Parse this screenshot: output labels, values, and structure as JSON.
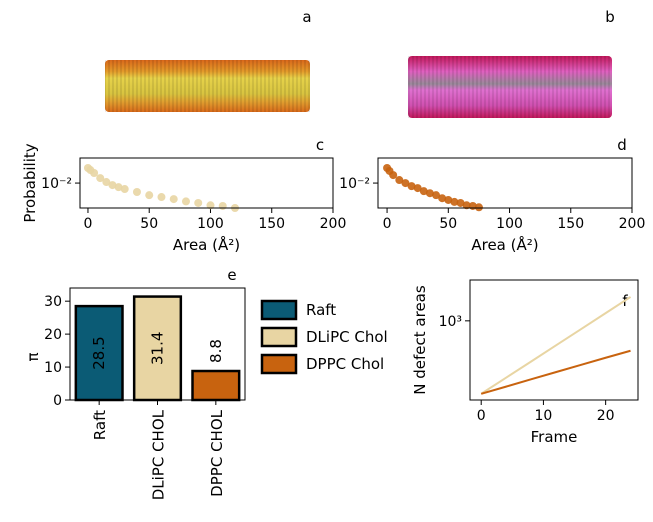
{
  "images": [
    {
      "label": "a"
    },
    {
      "label": "b"
    }
  ],
  "chart_data": [
    {
      "type": "scatter",
      "panel_label": "c",
      "xlabel": "Area (Å²)",
      "ylabel": "Probability",
      "color": "#e8d5a3",
      "log_y": true,
      "x": [
        0,
        2,
        5,
        10,
        15,
        20,
        25,
        30,
        40,
        50,
        60,
        70,
        80,
        90,
        100,
        110,
        120
      ],
      "values": [
        0.0237,
        0.0211,
        0.0178,
        0.0133,
        0.0106,
        0.0089,
        0.0079,
        0.0071,
        0.006,
        0.005,
        0.0045,
        0.004,
        0.0035,
        0.0032,
        0.0028,
        0.0027,
        0.0024
      ],
      "xlim": [
        -6.5,
        200
      ],
      "xticks": [
        0,
        50,
        100,
        150,
        200
      ],
      "ylim": [
        0.0024,
        0.042
      ],
      "yticks": [
        {
          "value": 0.01,
          "label": "10⁻²"
        }
      ]
    },
    {
      "type": "scatter",
      "panel_label": "d",
      "xlabel": "Area (Å²)",
      "color": "#c8630f",
      "log_y": true,
      "x": [
        0,
        2,
        5,
        10,
        15,
        20,
        25,
        30,
        35,
        40,
        45,
        50,
        55,
        60,
        65,
        70,
        75
      ],
      "values": [
        0.0237,
        0.02,
        0.0158,
        0.0119,
        0.01,
        0.0084,
        0.0075,
        0.0063,
        0.0056,
        0.005,
        0.0042,
        0.0038,
        0.0034,
        0.0032,
        0.0028,
        0.0027,
        0.0025
      ],
      "xlim": [
        -7.4,
        200
      ],
      "xticks": [
        0,
        50,
        100,
        150,
        200
      ],
      "ylim": [
        0.0024,
        0.042
      ],
      "yticks": [
        {
          "value": 0.01,
          "label": "10⁻²"
        }
      ]
    },
    {
      "type": "bar",
      "panel_label": "e",
      "ylabel": "π",
      "categories": [
        "Raft",
        "DLiPC CHOL",
        "DPPC CHOL"
      ],
      "values": [
        28.5,
        31.4,
        8.8
      ],
      "value_labels": [
        "28.5",
        "31.4",
        "8.8"
      ],
      "colors": [
        "#0b5b75",
        "#e8d5a3",
        "#c8630f"
      ],
      "legend": [
        "Raft",
        "DLiPC Chol",
        "DPPC Chol"
      ],
      "ylim": [
        0,
        34
      ],
      "yticks": [
        0,
        10,
        20,
        30
      ]
    },
    {
      "type": "line",
      "panel_label": "f",
      "xlabel": "Frame",
      "ylabel": "N defect areas",
      "log_y": true,
      "x": [
        0,
        4,
        8,
        12,
        16,
        20,
        24
      ],
      "series": [
        {
          "color": "#e8d5a3",
          "values": [
            350,
            441,
            556,
            702,
            885,
            1117,
            1410
          ]
        },
        {
          "color": "#c8630f",
          "values": [
            350,
            388,
            431,
            478,
            530,
            588,
            650
          ]
        }
      ],
      "xlim": [
        -1.8,
        25.2
      ],
      "xticks": [
        0,
        10,
        20
      ],
      "ylim": [
        320,
        1800
      ],
      "yticks": [
        {
          "value": 1000,
          "label": "10³"
        }
      ]
    }
  ]
}
